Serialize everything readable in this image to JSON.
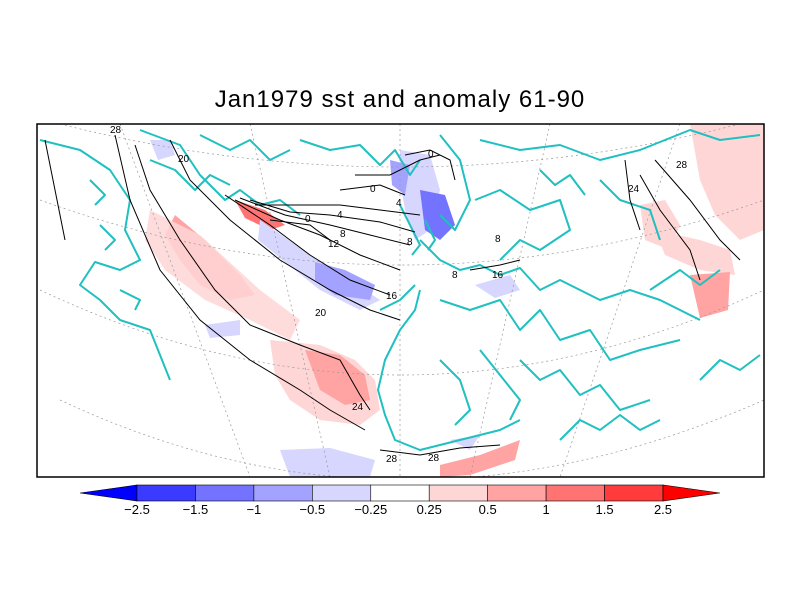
{
  "title": "Jan1979 sst and anomaly 61-90",
  "contour_labels": [
    "28",
    "20",
    "0",
    "4",
    "8",
    "12",
    "16",
    "20",
    "24",
    "28",
    "28",
    "24",
    "28",
    "0",
    "4",
    "8",
    "8",
    "16",
    "8",
    "0"
  ],
  "colorbar": {
    "ticks": [
      "-2.5",
      "-1.5",
      "-1",
      "-0.5",
      "-0.25",
      "0.25",
      "0.5",
      "1",
      "1.5",
      "2.5"
    ],
    "colors": [
      "#0000ff",
      "#3b3bff",
      "#7373ff",
      "#a3a3ff",
      "#d6d6ff",
      "#ffffff",
      "#ffd6d6",
      "#ffa3a3",
      "#ff7373",
      "#ff3b3b",
      "#ff0000"
    ]
  },
  "colors": {
    "coast": "#20c0c0",
    "contour": "#000000",
    "frame": "#000000"
  }
}
